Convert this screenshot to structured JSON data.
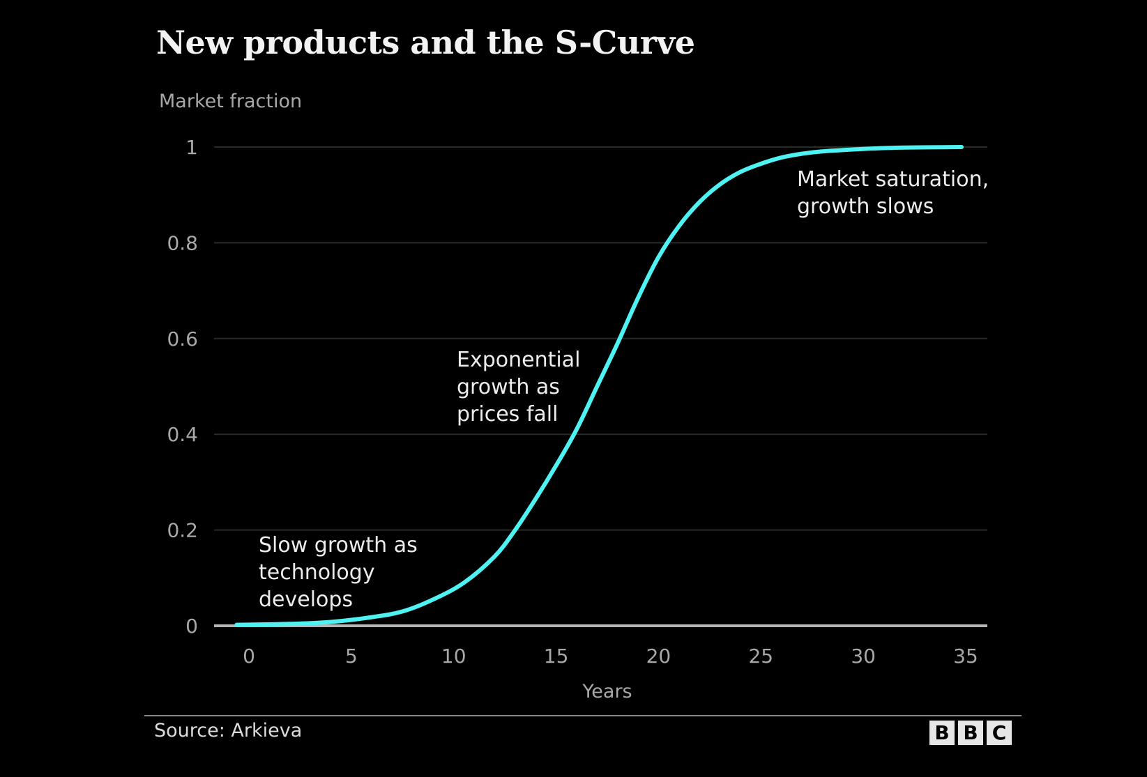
{
  "chart_data": {
    "type": "line",
    "title": "New products and the S-Curve",
    "ylabel": "Market fraction",
    "xlabel": "Years",
    "xlim": [
      -1,
      37.5
    ],
    "ylim": [
      0,
      1
    ],
    "x_ticks": [
      0,
      5,
      10,
      15,
      20,
      25,
      30,
      35
    ],
    "y_ticks": [
      0,
      0.2,
      0.4,
      0.6,
      0.8,
      1
    ],
    "y_tick_labels": [
      "0",
      "0.2",
      "0.4",
      "0.6",
      "0.8",
      "1"
    ],
    "grid": true,
    "series": [
      {
        "name": "Market fraction",
        "color": "#4ef2f2",
        "x": [
          -0.6,
          2,
          4,
          6,
          7.5,
          9,
          10.5,
          12,
          13,
          14,
          15,
          16,
          17,
          18,
          19,
          20,
          21,
          22,
          23,
          24,
          25,
          26,
          27,
          28,
          30,
          32,
          34.8
        ],
        "y": [
          0.002,
          0.004,
          0.008,
          0.018,
          0.03,
          0.055,
          0.09,
          0.145,
          0.2,
          0.265,
          0.335,
          0.41,
          0.5,
          0.59,
          0.685,
          0.77,
          0.835,
          0.885,
          0.922,
          0.948,
          0.965,
          0.978,
          0.986,
          0.991,
          0.996,
          0.999,
          1.0
        ]
      }
    ],
    "annotations": [
      {
        "lines": [
          "Slow growth as",
          "technology",
          "develops"
        ],
        "x": 0.5,
        "y": 0.2
      },
      {
        "lines": [
          "Exponential",
          "growth as",
          "prices fall"
        ],
        "x": 10.7,
        "y": 0.6
      },
      {
        "lines": [
          "Market saturation,",
          "growth slows"
        ],
        "x": 27.4,
        "y": 0.98
      }
    ]
  },
  "footer": {
    "source": "Source: Arkieva",
    "logo_letters": [
      "B",
      "B",
      "C"
    ]
  }
}
